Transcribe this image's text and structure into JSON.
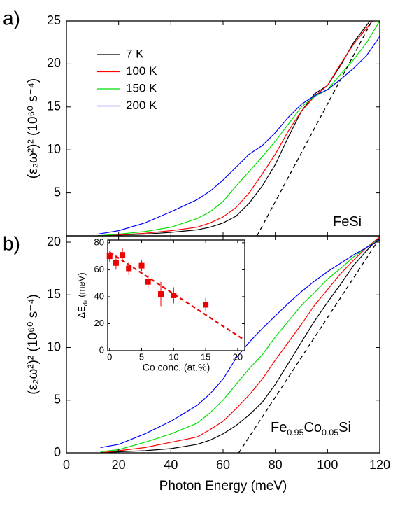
{
  "chart_data": [
    {
      "type": "line",
      "panel_label": "a)",
      "annotation": [
        "FeSi"
      ],
      "ylabel": "(ε₂ω²)² (10⁶⁰ s⁻⁴)",
      "xlim": [
        0,
        120
      ],
      "xticks": [
        0,
        20,
        40,
        60,
        80,
        100,
        120
      ],
      "ylim": [
        0,
        25
      ],
      "yticks": [
        5,
        10,
        15,
        20,
        25
      ],
      "legend": "upper left",
      "x": [
        12,
        20,
        30,
        40,
        50,
        55,
        60,
        65,
        70,
        75,
        80,
        85,
        90,
        95,
        100,
        105,
        110,
        115,
        120
      ],
      "series": [
        {
          "name": "7 K",
          "color": "#000000",
          "values": [
            0,
            0.1,
            0.2,
            0.4,
            0.7,
            1.0,
            1.5,
            2.3,
            3.8,
            5.8,
            8.3,
            11.5,
            14.5,
            16.5,
            17.5,
            19.8,
            22.5,
            24.5,
            26.5
          ]
        },
        {
          "name": "100 K",
          "color": "#ff0000",
          "values": [
            0,
            0.1,
            0.3,
            0.6,
            1.0,
            1.5,
            2.2,
            3.3,
            5.0,
            7.2,
            9.5,
            12.2,
            14.5,
            16.2,
            17.5,
            20.0,
            22.3,
            24.2,
            26.0
          ]
        },
        {
          "name": "150 K",
          "color": "#00e000",
          "values": [
            0,
            0.2,
            0.5,
            1.0,
            2.0,
            2.8,
            4.0,
            5.8,
            7.5,
            9.2,
            11.0,
            13.0,
            15.0,
            16.2,
            17.0,
            18.8,
            20.5,
            22.5,
            25.0
          ]
        },
        {
          "name": "200 K",
          "color": "#0000ff",
          "values": [
            0.2,
            0.6,
            1.5,
            2.8,
            4.2,
            5.2,
            6.5,
            8.0,
            9.5,
            10.5,
            12.0,
            13.8,
            15.3,
            16.3,
            17.0,
            18.2,
            19.5,
            21.0,
            23.2
          ]
        },
        {
          "color": "#000000",
          "dash": true,
          "x": [
            73,
            117
          ],
          "values": [
            0,
            25
          ]
        }
      ]
    },
    {
      "type": "line",
      "panel_label": "b)",
      "annotation": [
        "Fe",
        "0.95",
        "Co",
        "0.05",
        "Si"
      ],
      "xlabel": "Photon Energy (meV)",
      "ylabel": "(ε₂ω²)² (10⁶⁰ s⁻⁴)",
      "xlim": [
        0,
        120
      ],
      "xticks": [
        0,
        20,
        40,
        60,
        80,
        100,
        120
      ],
      "ylim": [
        0,
        20.6
      ],
      "yticks": [
        0,
        5,
        10,
        15,
        20
      ],
      "x": [
        13,
        20,
        30,
        40,
        50,
        55,
        60,
        65,
        70,
        75,
        80,
        85,
        90,
        95,
        100,
        105,
        110,
        115,
        120
      ],
      "series": [
        {
          "color": "#000000",
          "values": [
            0,
            0.1,
            0.2,
            0.4,
            0.8,
            1.2,
            1.8,
            2.6,
            3.6,
            4.8,
            6.5,
            8.5,
            10.5,
            12.5,
            14.3,
            16.0,
            17.8,
            19.2,
            20.5
          ]
        },
        {
          "color": "#ff0000",
          "values": [
            0,
            0.2,
            0.5,
            1.0,
            1.5,
            2.2,
            3.0,
            4.2,
            5.5,
            7.0,
            8.8,
            10.5,
            12.2,
            14.0,
            15.5,
            17.0,
            18.3,
            19.5,
            20.5
          ]
        },
        {
          "color": "#00e000",
          "values": [
            0.1,
            0.3,
            1.0,
            1.8,
            2.8,
            3.8,
            5.0,
            6.5,
            8.0,
            9.3,
            11.0,
            12.5,
            14.0,
            15.2,
            16.5,
            17.5,
            18.6,
            19.5,
            20.3
          ]
        },
        {
          "color": "#0000ff",
          "values": [
            0.5,
            0.8,
            1.8,
            3.0,
            4.5,
            5.6,
            7.0,
            9.0,
            10.5,
            11.8,
            13.0,
            14.2,
            15.3,
            16.3,
            17.2,
            18.0,
            18.8,
            19.5,
            20.2
          ]
        },
        {
          "color": "#000000",
          "dash": true,
          "x": [
            66,
            120
          ],
          "values": [
            0,
            20.4
          ]
        }
      ]
    },
    {
      "type": "scatter",
      "xlabel": "Co conc. (at.%)",
      "ylabel": [
        "ΔE",
        "dir",
        " (meV)"
      ],
      "xlim": [
        -0.3,
        21.1
      ],
      "xticks": [
        0,
        5,
        10,
        15,
        20
      ],
      "ylim": [
        0,
        82
      ],
      "yticks": [
        0,
        20,
        40,
        60,
        80
      ],
      "color": "#ee0000",
      "x": [
        0,
        1,
        2,
        3,
        5,
        6,
        8,
        10,
        15
      ],
      "values": [
        70,
        65,
        71,
        61,
        63,
        51,
        42,
        41,
        34
      ],
      "errors": [
        4,
        5,
        5,
        5,
        4,
        5,
        9,
        6,
        5
      ],
      "fit": {
        "color": "#ee0000",
        "dash": true,
        "x": [
          0,
          21
        ],
        "values": [
          73,
          8
        ]
      }
    }
  ]
}
